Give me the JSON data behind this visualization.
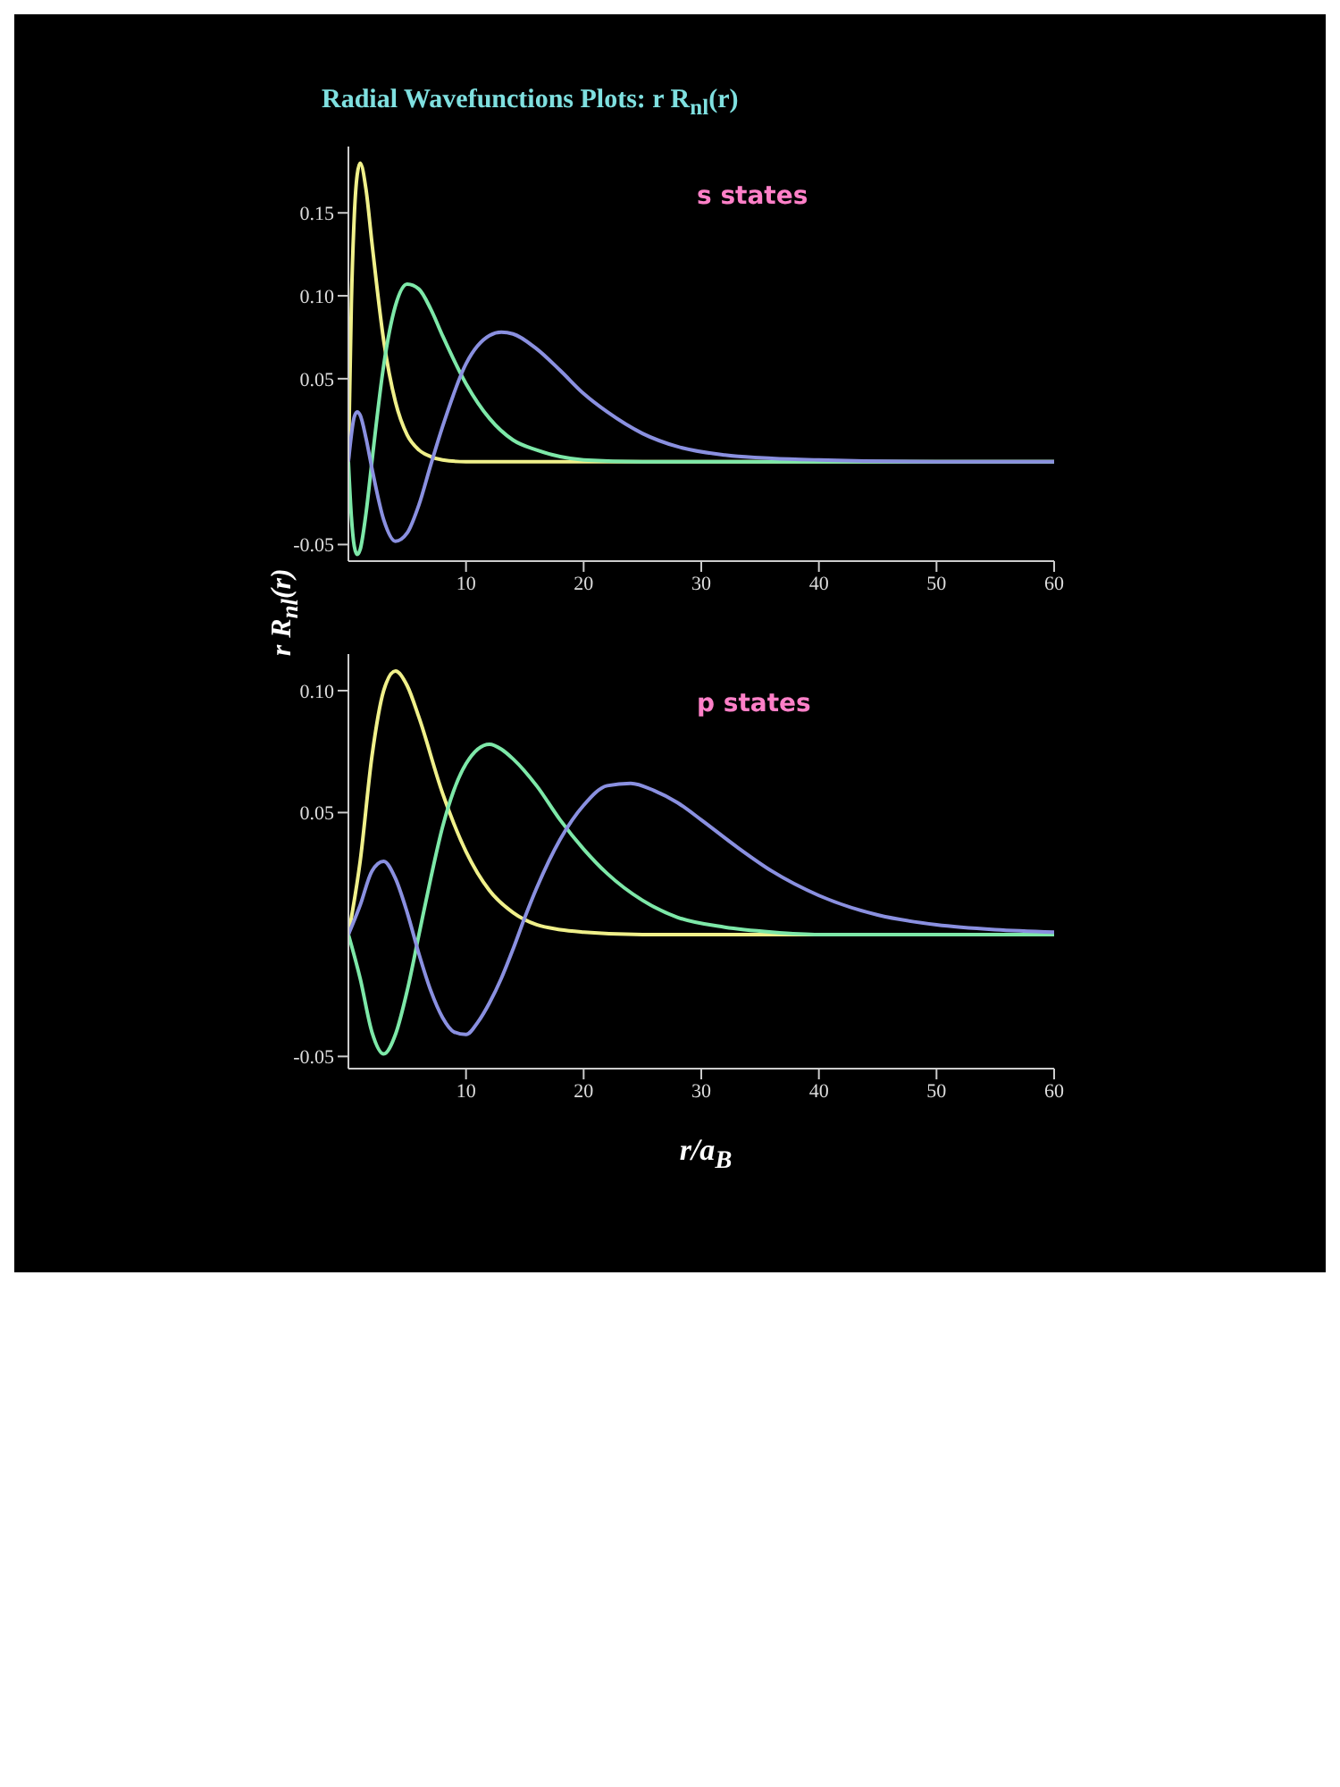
{
  "chart_data": [
    {
      "type": "line",
      "title": "Radial Wavefunctions Plots: r R$_{nl}$(r)",
      "ylabel": "r R$_{nl}$(r)",
      "annotations": [
        "s states"
      ],
      "marker": "none",
      "line_style": "solid",
      "grid": false,
      "legend": false,
      "xlim": [
        0,
        60
      ],
      "xticks": [
        10,
        20,
        30,
        40,
        50,
        60
      ],
      "ylim": [
        -0.06,
        0.19
      ],
      "yticks": [
        -0.05,
        0.05,
        {
          "value": 0.1,
          "label": "0.10"
        },
        0.15
      ],
      "series": [
        {
          "color": "#f0f08a",
          "x": [
            0,
            0.25,
            0.5,
            0.75,
            1,
            1.5,
            2,
            3,
            4,
            5,
            6,
            7,
            8,
            10,
            60
          ],
          "values": [
            0,
            0.095,
            0.148,
            0.173,
            0.18,
            0.164,
            0.132,
            0.073,
            0.036,
            0.016,
            0.007,
            0.003,
            0.001,
            0,
            0
          ]
        },
        {
          "color": "#7de8a8",
          "x": [
            0,
            0.25,
            0.5,
            0.75,
            1,
            1.5,
            2,
            3,
            4,
            5,
            6,
            7,
            8,
            10,
            12,
            14,
            16,
            18,
            20,
            25,
            60
          ],
          "values": [
            0,
            -0.033,
            -0.051,
            -0.056,
            -0.053,
            -0.031,
            0,
            0.058,
            0.094,
            0.107,
            0.104,
            0.092,
            0.076,
            0.047,
            0.026,
            0.013,
            0.007,
            0.003,
            0.001,
            0,
            0
          ]
        },
        {
          "color": "#8a90e0",
          "x": [
            0,
            0.5,
            0.75,
            1,
            1.5,
            2,
            3,
            4,
            5,
            6,
            7,
            8,
            10,
            12,
            13,
            14,
            16,
            18,
            20,
            22,
            25,
            28,
            32,
            36,
            40,
            50,
            60
          ],
          "values": [
            0,
            0.027,
            0.03,
            0.028,
            0.014,
            -0.004,
            -0.035,
            -0.048,
            -0.043,
            -0.026,
            -0.002,
            0.021,
            0.059,
            0.076,
            0.078,
            0.077,
            0.068,
            0.055,
            0.041,
            0.03,
            0.017,
            0.009,
            0.004,
            0.002,
            0.001,
            0,
            0
          ]
        }
      ]
    },
    {
      "type": "line",
      "xlabel": "r/a$_{B}$",
      "annotations": [
        "p states"
      ],
      "marker": "none",
      "line_style": "solid",
      "grid": false,
      "legend": false,
      "xlim": [
        0,
        60
      ],
      "xticks": [
        10,
        20,
        30,
        40,
        50,
        60
      ],
      "ylim": [
        -0.055,
        0.115
      ],
      "yticks": [
        -0.05,
        0.05,
        {
          "value": 0.1,
          "label": "0.10"
        }
      ],
      "series": [
        {
          "color": "#f0f08a",
          "x": [
            0,
            1,
            2,
            3,
            4,
            5,
            6,
            8,
            10,
            12,
            14,
            16,
            18,
            20,
            25,
            60
          ],
          "values": [
            0,
            0.03,
            0.073,
            0.1,
            0.108,
            0.102,
            0.089,
            0.058,
            0.034,
            0.018,
            0.009,
            0.004,
            0.002,
            0.001,
            0,
            0
          ]
        },
        {
          "color": "#7de8a8",
          "x": [
            0,
            1,
            2,
            3,
            4,
            5,
            6,
            7,
            8,
            10,
            12,
            13,
            14,
            16,
            18,
            20,
            22,
            25,
            28,
            32,
            36,
            40,
            60
          ],
          "values": [
            0,
            -0.018,
            -0.04,
            -0.049,
            -0.041,
            -0.023,
            0,
            0.023,
            0.044,
            0.07,
            0.078,
            0.076,
            0.072,
            0.061,
            0.047,
            0.035,
            0.025,
            0.014,
            0.007,
            0.003,
            0.001,
            0,
            0
          ]
        },
        {
          "color": "#8a90e0",
          "x": [
            0,
            1,
            2,
            3,
            4,
            5,
            6,
            7,
            8,
            9,
            10,
            11,
            12,
            13,
            14,
            15,
            16,
            18,
            20,
            22,
            24,
            26,
            28,
            30,
            33,
            36,
            40,
            45,
            50,
            55,
            60
          ],
          "values": [
            0,
            0.012,
            0.026,
            0.03,
            0.023,
            0.009,
            -0.008,
            -0.023,
            -0.034,
            -0.04,
            -0.041,
            -0.036,
            -0.028,
            -0.018,
            -0.006,
            0.007,
            0.019,
            0.039,
            0.053,
            0.061,
            0.062,
            0.059,
            0.054,
            0.047,
            0.036,
            0.026,
            0.016,
            0.008,
            0.004,
            0.002,
            0.001
          ]
        }
      ]
    }
  ]
}
